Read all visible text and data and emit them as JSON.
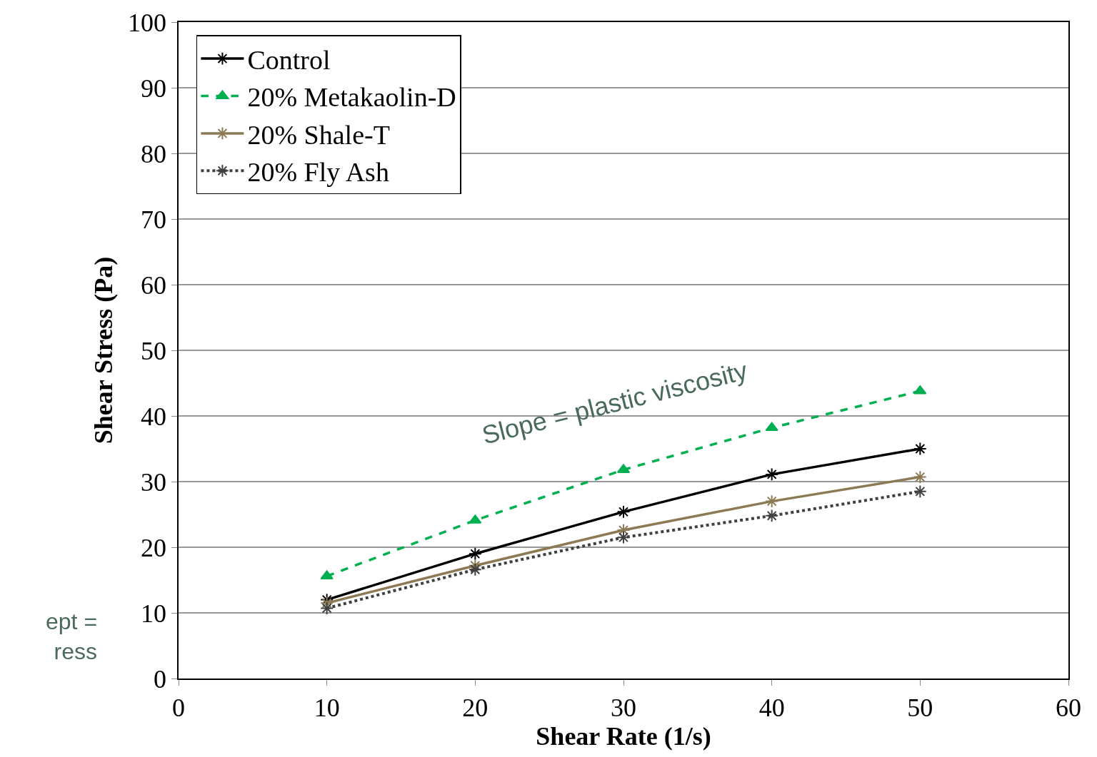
{
  "chart_data": {
    "type": "line",
    "xlabel": "Shear Rate (1/s)",
    "ylabel": "Shear Stress (Pa)",
    "x": [
      10,
      20,
      30,
      40,
      50
    ],
    "series": [
      {
        "name": "Control",
        "color": "#000000",
        "values": [
          12.0,
          19.0,
          25.4,
          31.1,
          35.0
        ],
        "marker": "cross",
        "line_style": "solid"
      },
      {
        "name": "20% Metakaolin-D",
        "color": "#00b050",
        "values": [
          15.6,
          24.1,
          31.8,
          38.2,
          43.8
        ],
        "marker": "triangle",
        "line_style": "dashed"
      },
      {
        "name": "20% Shale-T",
        "color": "#8c7a55",
        "values": [
          11.5,
          17.2,
          22.6,
          27.0,
          30.7
        ],
        "marker": "cross",
        "line_style": "solid"
      },
      {
        "name": "20% Fly Ash",
        "color": "#404040",
        "values": [
          10.7,
          16.6,
          21.5,
          24.8,
          28.5
        ],
        "marker": "cross",
        "line_style": "dotted"
      }
    ],
    "annotations": [
      "Slope = plastic viscosity",
      "ept =\nress"
    ],
    "xlim": [
      0,
      60
    ],
    "xticks": [
      0,
      10,
      20,
      30,
      40,
      50,
      60
    ],
    "ylim": [
      0,
      100
    ],
    "yticks": [
      0,
      10,
      20,
      30,
      40,
      50,
      60,
      70,
      80,
      90,
      100
    ],
    "grid": "y",
    "legend": "top left"
  }
}
